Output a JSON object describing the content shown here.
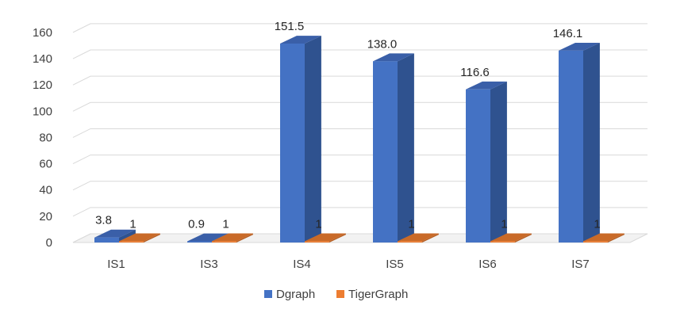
{
  "chart_data": {
    "type": "bar",
    "title": "",
    "xlabel": "",
    "ylabel": "",
    "categories": [
      "IS1",
      "IS3",
      "IS4",
      "IS5",
      "IS6",
      "IS7"
    ],
    "series": [
      {
        "name": "Dgraph",
        "values": [
          3.8,
          0.9,
          151.5,
          138.0,
          116.6,
          146.1
        ],
        "labels": [
          "3.8",
          "0.9",
          "151.5",
          "138.0",
          "116.6",
          "146.1"
        ],
        "color": "#4472C4",
        "side_color": "#2F528F",
        "top_color": "#3A5FA8"
      },
      {
        "name": "TigerGraph",
        "values": [
          1,
          1,
          1,
          1,
          1,
          1
        ],
        "labels": [
          "1",
          "1",
          "1",
          "1",
          "1",
          "1"
        ],
        "color": "#ED7D31",
        "side_color": "#B65E22",
        "top_color": "#C96A28"
      }
    ],
    "ylim": [
      0,
      160
    ],
    "yticks": [
      0,
      20,
      40,
      60,
      80,
      100,
      120,
      140,
      160
    ],
    "grid": true,
    "legend_position": "bottom",
    "style": "3d-column"
  }
}
